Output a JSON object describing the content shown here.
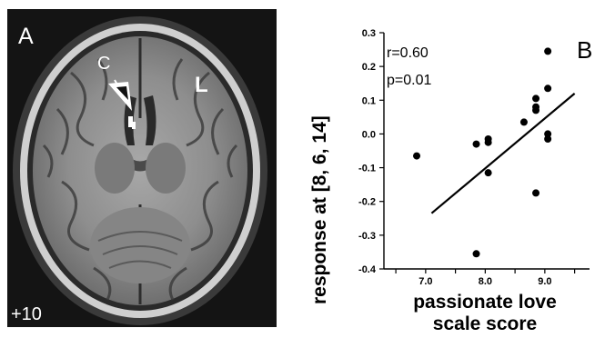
{
  "panel_a": {
    "panel_label": "A",
    "marker_label": "C",
    "side_label": "L",
    "slice_label": "+10"
  },
  "chart_data": {
    "type": "scatter",
    "panel_label": "B",
    "xlabel": [
      "passionate love",
      "scale score"
    ],
    "ylabel": "response at [8, 6, 14]",
    "stats": [
      "r=0.60",
      "p=0.01"
    ],
    "xlim": [
      6.3,
      9.75
    ],
    "ylim": [
      -0.4,
      0.3
    ],
    "xticks": [
      6.5,
      7.0,
      7.5,
      8.0,
      8.5,
      9.0,
      9.5
    ],
    "xtick_labels": [
      "",
      "7.0",
      "",
      "8.0",
      "",
      "9.0",
      ""
    ],
    "yticks": [
      0.3,
      0.2,
      0.1,
      0.0,
      -0.1,
      -0.2,
      -0.3,
      -0.4
    ],
    "ytick_labels": [
      "0.3",
      "0.2",
      "0.1",
      "0.0",
      "-0.1",
      "-0.2",
      "-0.3",
      "-0.4"
    ],
    "points": [
      {
        "x": 6.85,
        "y": -0.065
      },
      {
        "x": 7.85,
        "y": -0.03
      },
      {
        "x": 7.85,
        "y": -0.355
      },
      {
        "x": 8.05,
        "y": -0.015
      },
      {
        "x": 8.05,
        "y": -0.025
      },
      {
        "x": 8.05,
        "y": -0.115
      },
      {
        "x": 8.65,
        "y": 0.035
      },
      {
        "x": 8.85,
        "y": 0.105
      },
      {
        "x": 8.85,
        "y": 0.08
      },
      {
        "x": 8.85,
        "y": 0.07
      },
      {
        "x": 8.85,
        "y": -0.175
      },
      {
        "x": 9.05,
        "y": 0.245
      },
      {
        "x": 9.05,
        "y": 0.135
      },
      {
        "x": 9.05,
        "y": 0.0
      },
      {
        "x": 9.05,
        "y": -0.015
      }
    ],
    "fit_line": [
      {
        "x": 7.1,
        "y": -0.235
      },
      {
        "x": 9.5,
        "y": 0.12
      }
    ],
    "colors": {
      "points": "#000000",
      "line": "#000000"
    }
  }
}
